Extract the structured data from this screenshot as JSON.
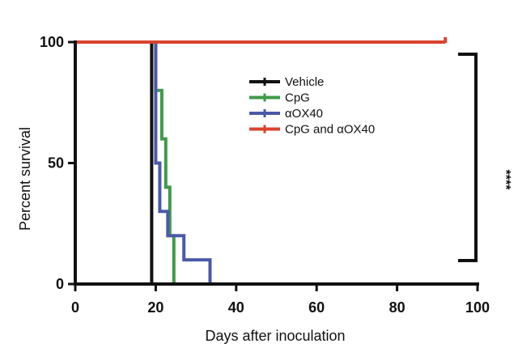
{
  "chart_data": {
    "type": "line",
    "subtype": "kaplan-meier step",
    "title": "",
    "xlabel": "Days after inoculation",
    "ylabel": "Percent survival",
    "xlim": [
      0,
      100
    ],
    "ylim": [
      0,
      100
    ],
    "x_ticks": [
      0,
      20,
      40,
      60,
      80,
      100
    ],
    "y_ticks": [
      0,
      50,
      100
    ],
    "grid": false,
    "legend_position": "top-center",
    "significance": "****",
    "series": [
      {
        "name": "Vehicle",
        "color": "#111111",
        "points": [
          [
            0,
            100
          ],
          [
            19,
            100
          ],
          [
            19,
            0
          ]
        ]
      },
      {
        "name": "CpG",
        "color": "#3f9a4a",
        "points": [
          [
            0,
            100
          ],
          [
            20,
            100
          ],
          [
            20,
            80
          ],
          [
            21.5,
            80
          ],
          [
            21.5,
            60
          ],
          [
            22.5,
            60
          ],
          [
            22.5,
            40
          ],
          [
            23.5,
            40
          ],
          [
            23.5,
            20
          ],
          [
            24.5,
            20
          ],
          [
            24.5,
            0
          ]
        ]
      },
      {
        "name": "αOX40",
        "color": "#4a5aa8",
        "points": [
          [
            0,
            100
          ],
          [
            20,
            100
          ],
          [
            20,
            50
          ],
          [
            21,
            50
          ],
          [
            21,
            30
          ],
          [
            23,
            30
          ],
          [
            23,
            20
          ],
          [
            27,
            20
          ],
          [
            27,
            10
          ],
          [
            33.5,
            10
          ],
          [
            33.5,
            0
          ]
        ]
      },
      {
        "name": "CpG and αOX40",
        "color": "#d9432e",
        "points": [
          [
            0,
            100
          ],
          [
            92,
            100
          ]
        ],
        "censor_end": true
      }
    ]
  }
}
